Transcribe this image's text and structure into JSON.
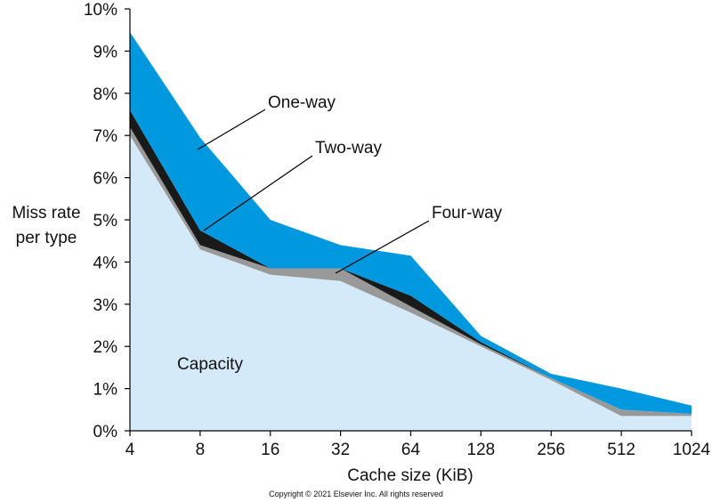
{
  "chart_data": {
    "type": "area",
    "x": [
      "4",
      "8",
      "16",
      "32",
      "64",
      "128",
      "256",
      "512",
      "1024"
    ],
    "xlabel": "Cache size (KiB)",
    "ylabel_lines": [
      "Miss rate",
      "per type"
    ],
    "y_ticks": [
      "0%",
      "1%",
      "2%",
      "3%",
      "4%",
      "5%",
      "6%",
      "7%",
      "8%",
      "9%",
      "10%"
    ],
    "ylim": [
      0,
      10
    ],
    "series": [
      {
        "name": "Capacity",
        "values": [
          7.0,
          4.3,
          3.7,
          3.55,
          2.8,
          2.0,
          1.2,
          0.35,
          0.35
        ],
        "color": "#d4eaf8"
      },
      {
        "name": "Four-way",
        "values": [
          7.2,
          4.4,
          3.85,
          3.85,
          2.95,
          2.05,
          1.25,
          0.5,
          0.4
        ],
        "color": "#999999"
      },
      {
        "name": "Two-way",
        "values": [
          7.6,
          4.75,
          3.85,
          3.85,
          3.2,
          2.1,
          1.25,
          0.5,
          0.4
        ],
        "color": "#1a1a1a"
      },
      {
        "name": "One-way",
        "values": [
          9.45,
          6.95,
          5.0,
          4.4,
          4.15,
          2.25,
          1.35,
          1.0,
          0.6
        ],
        "color": "#0099e0"
      }
    ],
    "legend": "callout labels"
  },
  "copyright": "Copyright © 2021 Elsevier Inc. All rights reserved"
}
